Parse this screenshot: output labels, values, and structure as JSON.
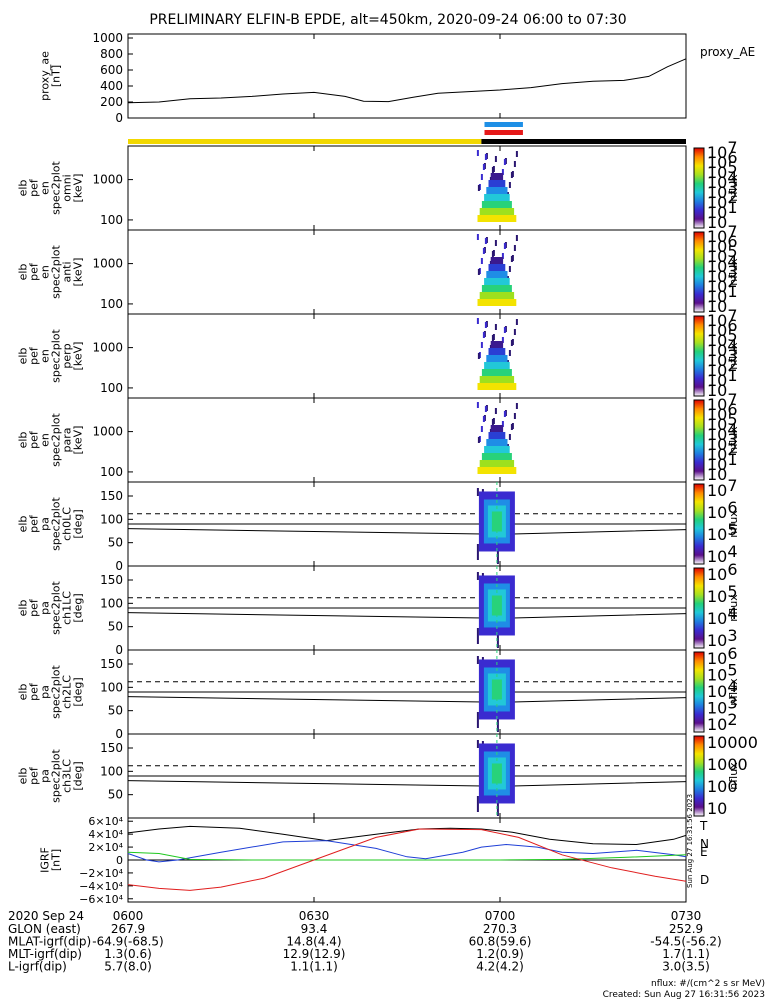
{
  "chart_data": {
    "type": "spectrogram",
    "title": "PRELIMINARY ELFIN-B EPDE, alt=450km, 2020-09-24 06:00 to 07:30",
    "time": {
      "start": "06:00",
      "end": "07:30",
      "tick_labels": [
        "0600",
        "0630",
        "0700",
        "0730"
      ],
      "tick_minutes": [
        0,
        30,
        60,
        90
      ]
    },
    "ae_panel": {
      "ylabel": [
        "proxy_ae",
        "[nT]"
      ],
      "yticks": [
        "1000",
        "800",
        "600",
        "400",
        "200",
        "0"
      ],
      "ylim": [
        0,
        1050
      ],
      "series_name": "proxy_AE",
      "minutes": [
        0,
        5,
        10,
        15,
        20,
        25,
        30,
        35,
        38,
        42,
        46,
        50,
        55,
        60,
        65,
        70,
        75,
        80,
        84,
        87,
        90
      ],
      "values": [
        190,
        200,
        240,
        250,
        270,
        300,
        320,
        270,
        210,
        205,
        260,
        310,
        330,
        350,
        380,
        430,
        460,
        470,
        520,
        640,
        740
      ]
    },
    "orbit_bar": {
      "segments": [
        {
          "from_min": 0,
          "to_min": 57,
          "color": "#f2d800"
        },
        {
          "from_min": 57,
          "to_min": 90,
          "color": "#000000"
        }
      ],
      "markers": [
        {
          "from_min": 57.5,
          "to_min": 63.7,
          "color": "#1e8fe6"
        },
        {
          "from_min": 57.5,
          "to_min": 63.7,
          "color": "#e61919"
        }
      ]
    },
    "energy_panels": [
      {
        "ylabel": [
          "elb",
          "pef",
          "en",
          "spec2plot",
          "omni",
          "[keV]"
        ],
        "yticks": [
          "1000",
          "100"
        ],
        "cbar_ticks": [
          "10",
          "10",
          "10",
          "10",
          "10",
          "10",
          "10",
          "10"
        ],
        "cbar_exps": [
          "7",
          "6",
          "5",
          "4",
          "3",
          "2",
          "1",
          ""
        ],
        "cbar_label": "nflux"
      },
      {
        "ylabel": [
          "elb",
          "pef",
          "en",
          "spec2plot",
          "anti",
          "[keV]"
        ],
        "yticks": [
          "1000",
          "100"
        ],
        "cbar_ticks": [
          "10",
          "10",
          "10",
          "10",
          "10",
          "10",
          "10",
          "10"
        ],
        "cbar_exps": [
          "7",
          "6",
          "5",
          "4",
          "3",
          "2",
          "1",
          ""
        ],
        "cbar_label": "nflux"
      },
      {
        "ylabel": [
          "elb",
          "pef",
          "en",
          "spec2plot",
          "perp",
          "[keV]"
        ],
        "yticks": [
          "1000",
          "100"
        ],
        "cbar_ticks": [
          "10",
          "10",
          "10",
          "10",
          "10",
          "10",
          "10",
          "10"
        ],
        "cbar_exps": [
          "7",
          "6",
          "5",
          "4",
          "3",
          "2",
          "1",
          ""
        ],
        "cbar_label": "nflux"
      },
      {
        "ylabel": [
          "elb",
          "pef",
          "en",
          "spec2plot",
          "para",
          "[keV]"
        ],
        "yticks": [
          "1000",
          "100"
        ],
        "cbar_ticks": [
          "10",
          "10",
          "10",
          "10",
          "10",
          "10",
          "10",
          "10"
        ],
        "cbar_exps": [
          "7",
          "6",
          "5",
          "4",
          "3",
          "2",
          "1",
          ""
        ],
        "cbar_label": "nflux"
      }
    ],
    "pa_panels": [
      {
        "ylabel": [
          "elb",
          "pef",
          "pa",
          "spec2plot",
          "ch0LC",
          "[deg]"
        ],
        "yticks": [
          "150",
          "100",
          "50",
          "0"
        ],
        "cbar_ticks": [
          "10",
          "10",
          "10",
          "10"
        ],
        "cbar_exps": [
          "7",
          "6",
          "5",
          "4"
        ],
        "cbar_label": "nflux"
      },
      {
        "ylabel": [
          "elb",
          "pef",
          "pa",
          "spec2plot",
          "ch1LC",
          "[deg]"
        ],
        "yticks": [
          "150",
          "100",
          "50",
          "0"
        ],
        "cbar_ticks": [
          "10",
          "10",
          "10",
          "10"
        ],
        "cbar_exps": [
          "6",
          "5",
          "4",
          "3"
        ],
        "cbar_label": "nflux"
      },
      {
        "ylabel": [
          "elb",
          "pef",
          "pa",
          "spec2plot",
          "ch2LC",
          "[deg]"
        ],
        "yticks": [
          "150",
          "100",
          "50",
          "0"
        ],
        "cbar_ticks": [
          "10",
          "10",
          "10",
          "10",
          "10"
        ],
        "cbar_exps": [
          "6",
          "5",
          "4",
          "3",
          "2"
        ],
        "cbar_label": "nflux"
      },
      {
        "ylabel": [
          "elb",
          "pef",
          "pa",
          "spec2plot",
          "ch3LC",
          "[deg]"
        ],
        "yticks": [
          "150",
          "100",
          "50"
        ],
        "cbar_ticks": [
          "10000",
          "1000",
          "100",
          "10"
        ],
        "cbar_exps": [
          "",
          "",
          "",
          ""
        ],
        "cbar_label": "nflux"
      }
    ],
    "igrf_panel": {
      "ylabel": [
        "IGRF",
        "[nT]"
      ],
      "yticks": [
        "6×10⁴",
        "4×10⁴",
        "2×10⁴",
        "0",
        "−2×10⁴",
        "−4×10⁴",
        "−6×10⁴"
      ],
      "ylim": [
        -65000,
        65000
      ],
      "series": [
        {
          "name": "T",
          "color": "#000000",
          "minutes": [
            0,
            5,
            10,
            18,
            25,
            32,
            40,
            47,
            52,
            57,
            62,
            68,
            75,
            82,
            88,
            90
          ],
          "values": [
            42000,
            48000,
            52000,
            49000,
            40000,
            30000,
            40000,
            48000,
            49000,
            48000,
            43000,
            32000,
            25000,
            24000,
            32000,
            38000
          ]
        },
        {
          "name": "N",
          "color": "#1f3fd6",
          "minutes": [
            0,
            3,
            5,
            8,
            15,
            25,
            32,
            40,
            45,
            48,
            54,
            57,
            61,
            66,
            70,
            75,
            82,
            88,
            90
          ],
          "values": [
            10000,
            0,
            -3000,
            0,
            12000,
            28000,
            30000,
            18000,
            5000,
            2000,
            12000,
            20000,
            24000,
            20000,
            12000,
            10000,
            15000,
            8000,
            5000
          ]
        },
        {
          "name": "E",
          "color": "#1fc81f",
          "minutes": [
            0,
            5,
            10,
            20,
            30,
            40,
            50,
            60,
            70,
            80,
            90
          ],
          "values": [
            12000,
            10000,
            1000,
            0,
            0,
            0,
            0,
            0,
            1000,
            4000,
            8000
          ]
        },
        {
          "name": "D",
          "color": "#e01e1e",
          "minutes": [
            0,
            5,
            10,
            15,
            22,
            30,
            40,
            47,
            57,
            63,
            70,
            78,
            85,
            90
          ],
          "values": [
            -38000,
            -44000,
            -47000,
            -42000,
            -28000,
            0,
            35000,
            48000,
            47000,
            35000,
            8000,
            -12000,
            -25000,
            -33000
          ]
        }
      ]
    },
    "footer": {
      "date": "2020 Sep 24",
      "rows": [
        {
          "label": "GLON (east)",
          "values": [
            "267.9",
            "93.4",
            "270.3",
            "252.9"
          ]
        },
        {
          "label": "MLAT-igrf(dip)",
          "values": [
            "-64.9(-68.5)",
            "14.8(4.4)",
            "60.8(59.6)",
            "-54.5(-56.2)"
          ]
        },
        {
          "label": "MLT-igrf(dip)",
          "values": [
            "1.3(0.6)",
            "12.9(12.9)",
            "1.2(0.9)",
            "1.7(1.1)"
          ]
        },
        {
          "label": "L-igrf(dip)",
          "values": [
            "5.7(8.0)",
            "1.1(1.1)",
            "4.2(4.2)",
            "3.0(3.5)"
          ]
        }
      ],
      "unit_note": "nflux: #/(cm^2 s sr MeV)",
      "created": "Created: Sun Aug 27 16:31:56 2023",
      "side_stamp": "Sun Aug 27 16:31:56 2023"
    }
  }
}
